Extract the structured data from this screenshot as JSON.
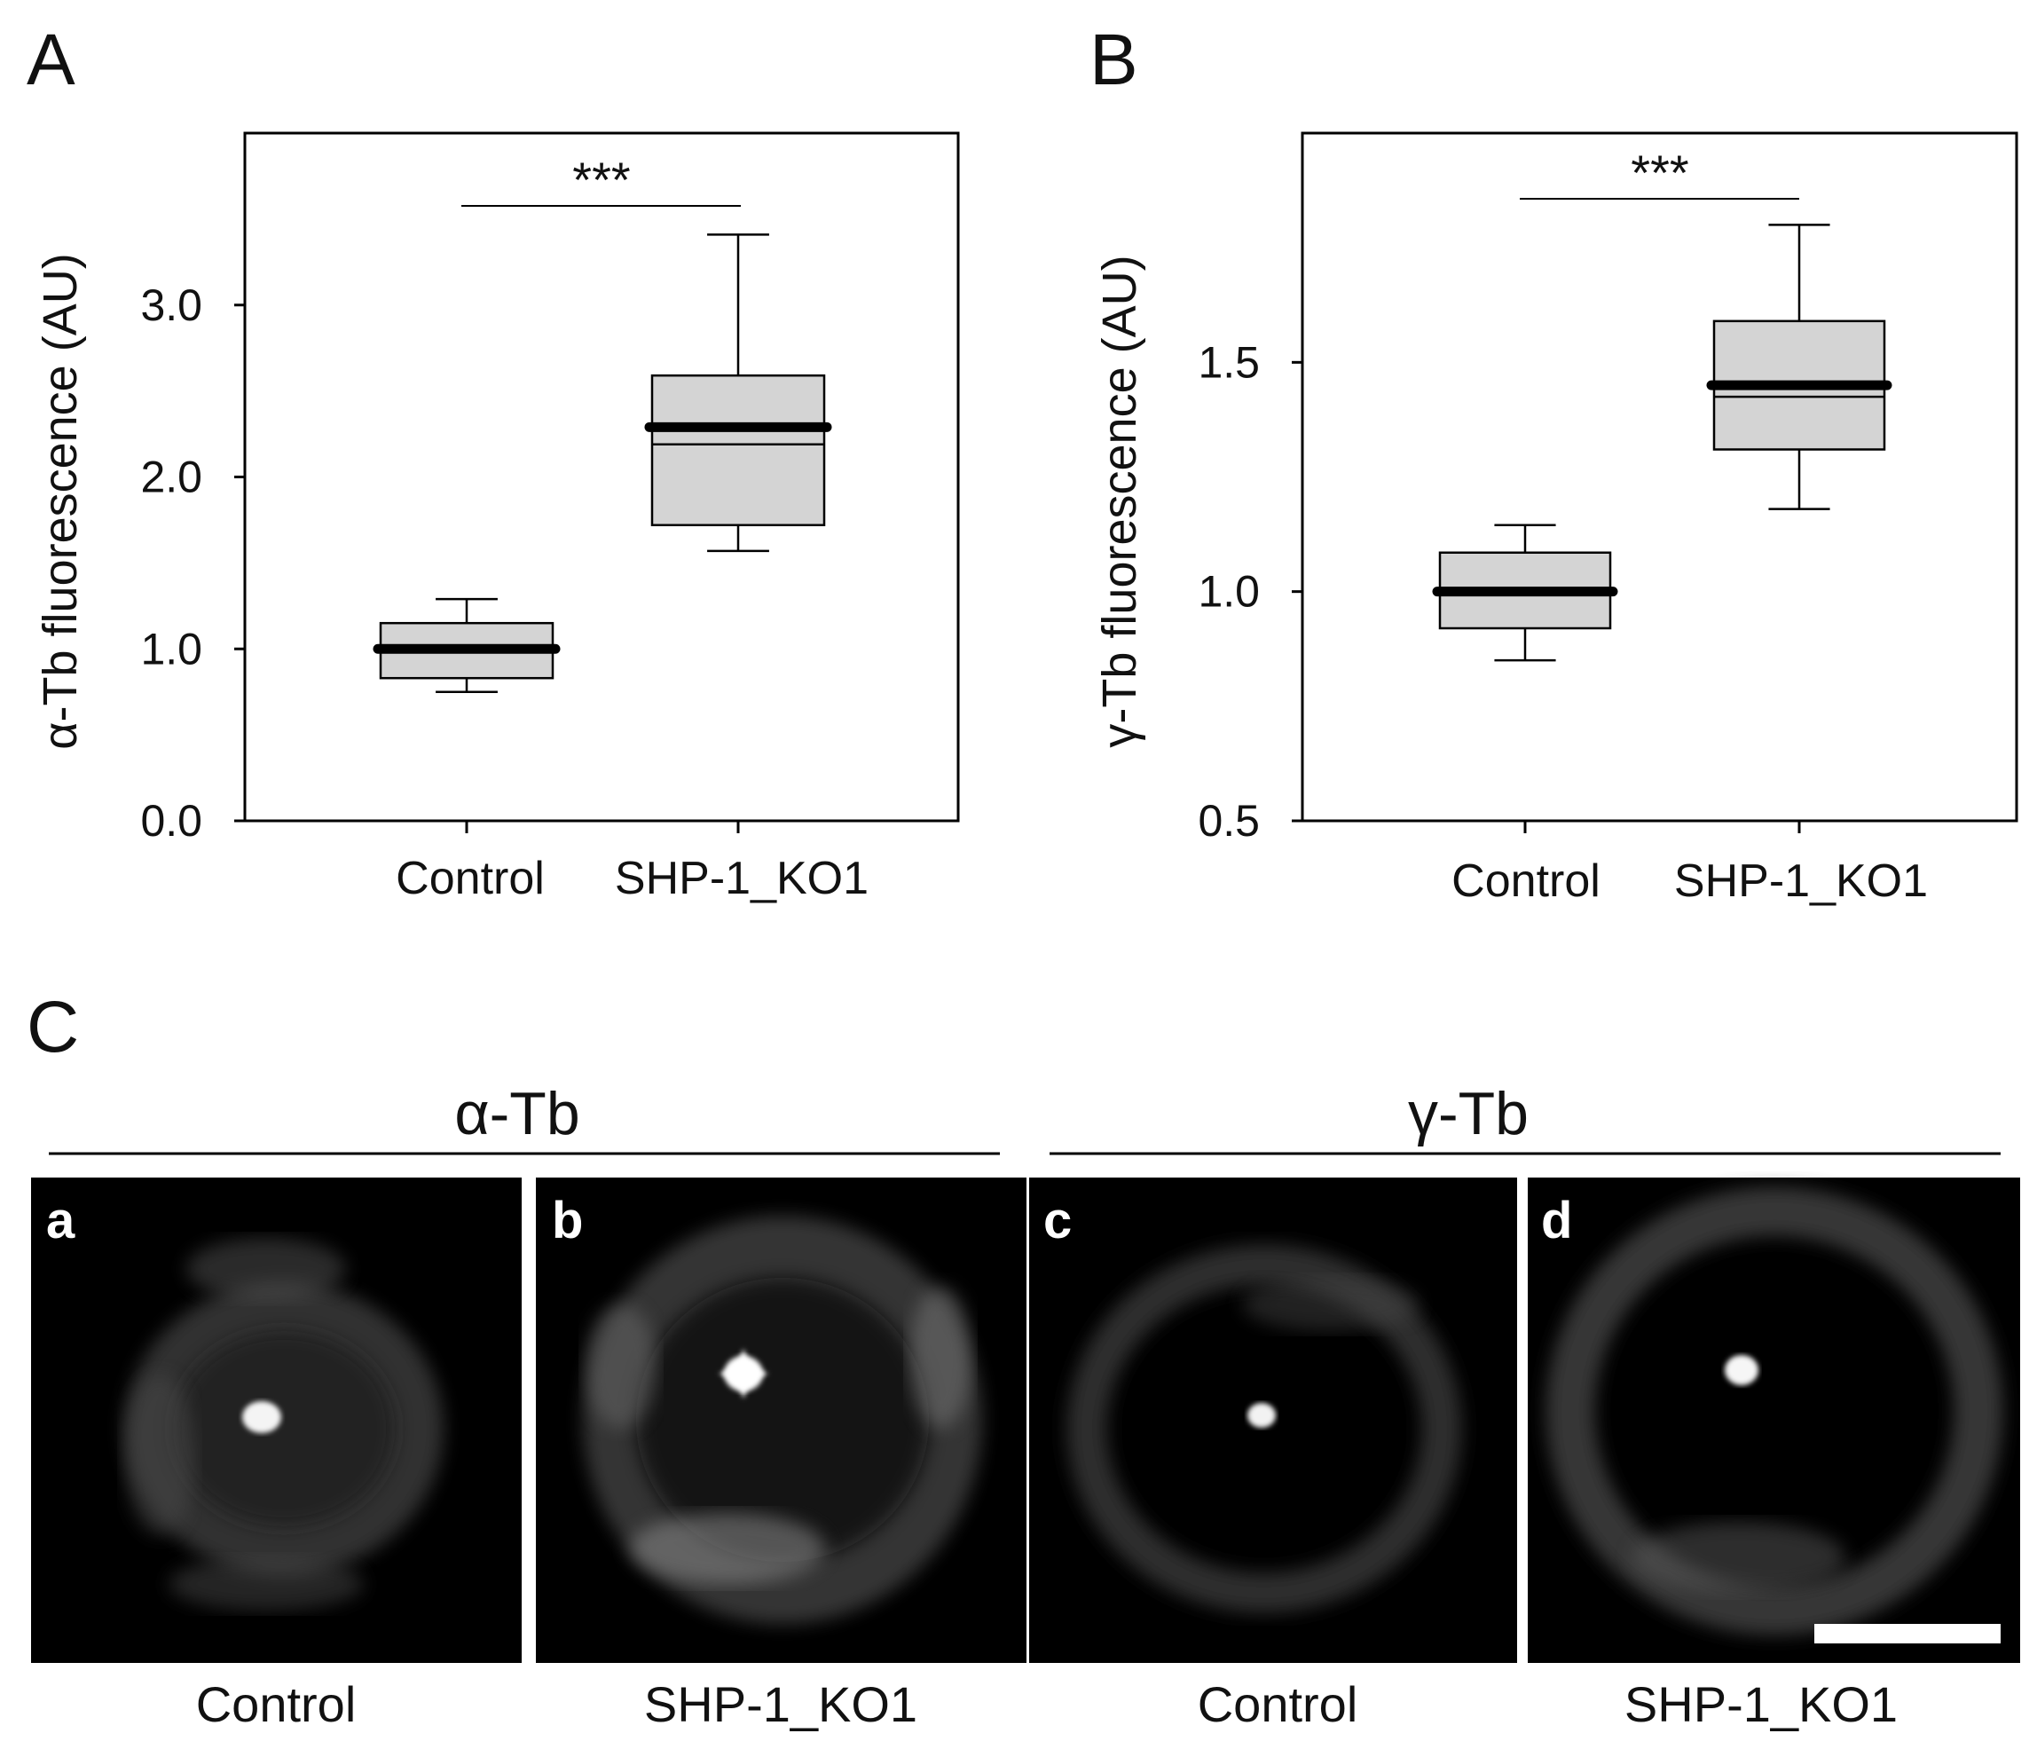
{
  "chart_data": [
    {
      "panel": "A",
      "type": "box",
      "ylabel": "α-Tb fluorescence (AU)",
      "ylim": [
        0,
        4.0
      ],
      "yticks": [
        0.0,
        1.0,
        2.0,
        3.0
      ],
      "ytick_labels": [
        "0.0",
        "1.0",
        "2.0",
        "3.0"
      ],
      "categories": [
        "Control",
        "SHP-1_KO1"
      ],
      "boxes": [
        {
          "whisker_low": 0.75,
          "q1": 0.83,
          "median": 0.98,
          "mean": 1.0,
          "q3": 1.15,
          "whisker_high": 1.29
        },
        {
          "whisker_low": 1.57,
          "q1": 1.72,
          "median": 2.19,
          "mean": 2.29,
          "q3": 2.59,
          "whisker_high": 3.41
        }
      ],
      "significance": "***"
    },
    {
      "panel": "B",
      "type": "box",
      "ylabel": "γ-Tb fluorescence (AU)",
      "ylim": [
        0.5,
        2.0
      ],
      "yticks": [
        0.5,
        1.0,
        1.5
      ],
      "ytick_labels": [
        "0.5",
        "1.0",
        "1.5"
      ],
      "categories": [
        "Control",
        "SHP-1_KO1"
      ],
      "boxes": [
        {
          "whisker_low": 0.85,
          "q1": 0.92,
          "median": 1.0,
          "mean": 1.0,
          "q3": 1.085,
          "whisker_high": 1.145
        },
        {
          "whisker_low": 1.18,
          "q1": 1.31,
          "median": 1.425,
          "mean": 1.45,
          "q3": 1.59,
          "whisker_high": 1.8
        }
      ],
      "significance": "***"
    }
  ],
  "panel_c": {
    "letter": "C",
    "conditions": [
      "α-Tb",
      "γ-Tb"
    ],
    "images": [
      {
        "letter": "a",
        "caption": "Control"
      },
      {
        "letter": "b",
        "caption": "SHP-1_KO1"
      },
      {
        "letter": "c",
        "caption": "Control"
      },
      {
        "letter": "d",
        "caption": "SHP-1_KO1"
      }
    ]
  }
}
